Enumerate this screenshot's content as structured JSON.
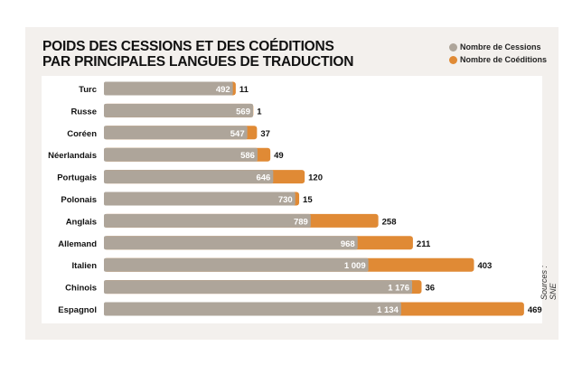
{
  "chart_data": {
    "type": "bar",
    "stacked": true,
    "orientation": "horizontal",
    "title": "POIDS DES CESSIONS ET DES COÉDITIONS PAR PRINCIPALES LANGUES DE TRADUCTION",
    "title_lines": [
      "POIDS DES CESSIONS ET DES COÉDITIONS",
      "PAR PRINCIPALES LANGUES DE TRADUCTION"
    ],
    "categories": [
      "Turc",
      "Russe",
      "Coréen",
      "Néerlandais",
      "Portugais",
      "Polonais",
      "Anglais",
      "Allemand",
      "Italien",
      "Chinois",
      "Espagnol"
    ],
    "series": [
      {
        "name": "Nombre de Cessions",
        "color": "#aea59a",
        "values": [
          492,
          569,
          547,
          586,
          646,
          730,
          789,
          968,
          1009,
          1176,
          1134
        ],
        "labels": [
          "492",
          "569",
          "547",
          "586",
          "646",
          "730",
          "789",
          "968",
          "1 009",
          "1 176",
          "1 134"
        ]
      },
      {
        "name": "Nombre de Coéditions",
        "color": "#e08a35",
        "values": [
          11,
          1,
          37,
          49,
          120,
          15,
          258,
          211,
          403,
          36,
          469
        ],
        "labels": [
          "11",
          "1",
          "37",
          "49",
          "120",
          "15",
          "258",
          "211",
          "403",
          "36",
          "469"
        ]
      }
    ],
    "legend_position": "top-right",
    "grid": false,
    "source": "Sources : SNE"
  }
}
